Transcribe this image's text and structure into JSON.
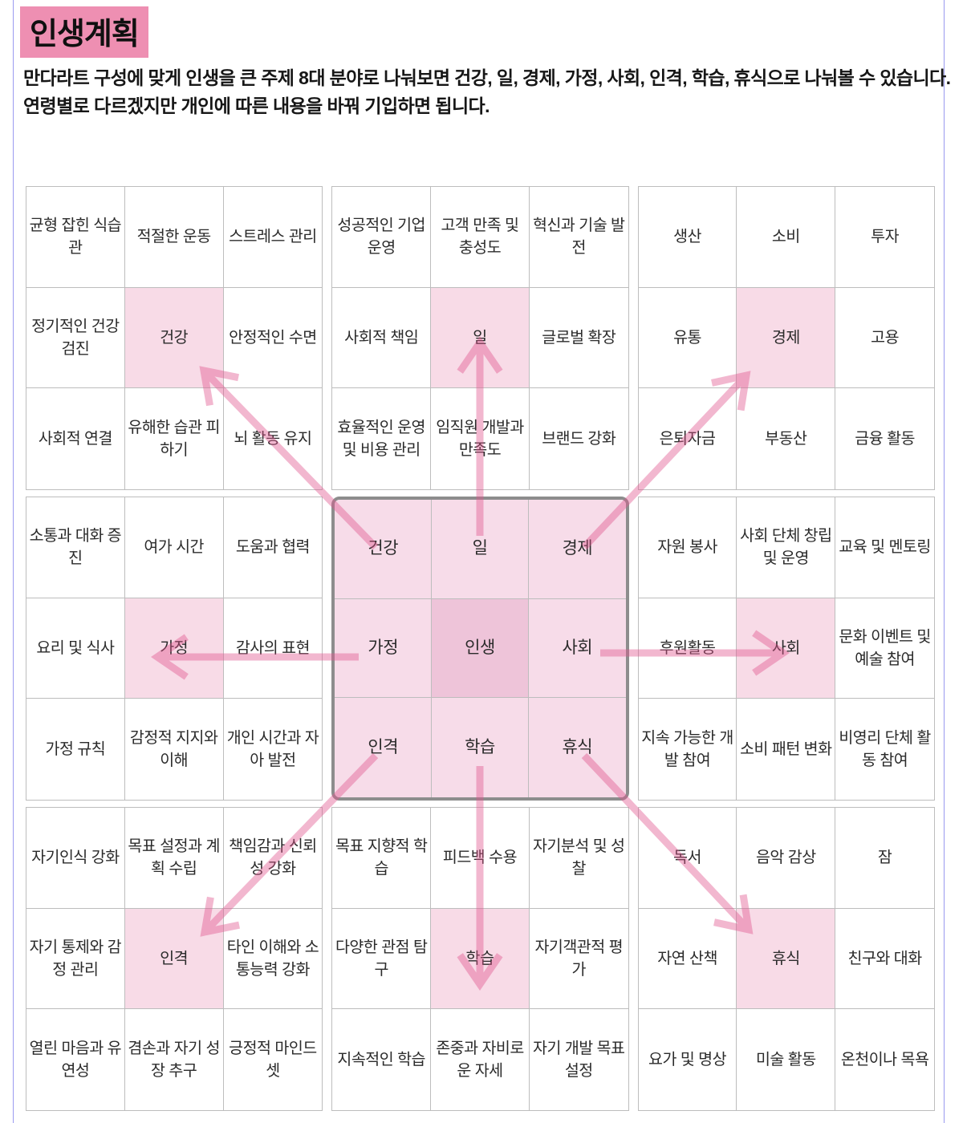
{
  "page": {
    "title": "인생계획",
    "description": "만다라트 구성에 맞게 인생을 큰 주제 8대 분야로 나눠보면 건강, 일, 경제, 가정, 사회, 인격, 학습, 휴식으로 나눠볼 수 있습니다. 연령별로 다르겠지만 개인에 따른 내용을 바꿔 기입하면 됩니다."
  },
  "colors": {
    "title_highlight": "#ee8fb2",
    "cell_highlight": "#f8dbe7",
    "center_block_cell": "#f7dce9",
    "center_cell": "#eec4d9",
    "arrow": "#e0548c",
    "grid_line": "#bdbdbd",
    "center_block_border": "#8d8d8d",
    "page_guide": "#9a9af0"
  },
  "mandalart": {
    "center_theme": "인생",
    "themes": [
      "건강",
      "일",
      "경제",
      "가정",
      "사회",
      "인격",
      "학습",
      "휴식"
    ],
    "blocks": [
      {
        "key": "health",
        "theme": "건강",
        "position": "top-left",
        "cells": [
          "균형 잡힌 식습관",
          "적절한 운동",
          "스트레스 관리",
          "정기적인 건강 검진",
          "건강",
          "안정적인 수면",
          "사회적 연결",
          "유해한 습관 피하기",
          "뇌 활동 유지"
        ]
      },
      {
        "key": "work",
        "theme": "일",
        "position": "top-center",
        "cells": [
          "성공적인 기업 운영",
          "고객 만족 및 충성도",
          "혁신과 기술 발전",
          "사회적 책임",
          "일",
          "글로벌 확장",
          "효율적인 운영 및 비용 관리",
          "임직원 개발과 만족도",
          "브랜드 강화"
        ]
      },
      {
        "key": "economy",
        "theme": "경제",
        "position": "top-right",
        "cells": [
          "생산",
          "소비",
          "투자",
          "유통",
          "경제",
          "고용",
          "은퇴자금",
          "부동산",
          "금융 활동"
        ]
      },
      {
        "key": "family",
        "theme": "가정",
        "position": "middle-left",
        "cells": [
          "소통과 대화 증진",
          "여가 시간",
          "도움과 협력",
          "요리 및 식사",
          "가정",
          "감사의 표현",
          "가정 규칙",
          "감정적 지지와 이해",
          "개인 시간과 자아 발전"
        ]
      },
      {
        "key": "life",
        "theme": "인생",
        "position": "center",
        "cells": [
          "건강",
          "일",
          "경제",
          "가정",
          "인생",
          "사회",
          "인격",
          "학습",
          "휴식"
        ]
      },
      {
        "key": "society",
        "theme": "사회",
        "position": "middle-right",
        "cells": [
          "자원 봉사",
          "사회 단체 창립 및 운영",
          "교육 및 멘토링",
          "후원활동",
          "사회",
          "문화 이벤트 및 예술 참여",
          "지속 가능한 개발 참여",
          "소비 패턴 변화",
          "비영리 단체 활동 참여"
        ]
      },
      {
        "key": "character",
        "theme": "인격",
        "position": "bottom-left",
        "cells": [
          "자기인식 강화",
          "목표 설정과 계획 수립",
          "책임감과 신뢰성 강화",
          "자기 통제와 감정 관리",
          "인격",
          "타인 이해와 소통능력 강화",
          "열린 마음과 유연성",
          "겸손과 자기 성장 추구",
          "긍정적 마인드셋"
        ]
      },
      {
        "key": "learning",
        "theme": "학습",
        "position": "bottom-center",
        "cells": [
          "목표 지향적 학습",
          "피드백 수용",
          "자기분석 및 성찰",
          "다양한 관점 탐구",
          "학습",
          "자기객관적 평가",
          "지속적인 학습",
          "존중과 자비로운 자세",
          "자기 개발 목표 설정"
        ]
      },
      {
        "key": "rest",
        "theme": "휴식",
        "position": "bottom-right",
        "cells": [
          "독서",
          "음악 감상",
          "잠",
          "자연 산책",
          "휴식",
          "친구와 대화",
          "요가 및 명상",
          "미술 활동",
          "온천이나 목욕"
        ]
      }
    ]
  }
}
